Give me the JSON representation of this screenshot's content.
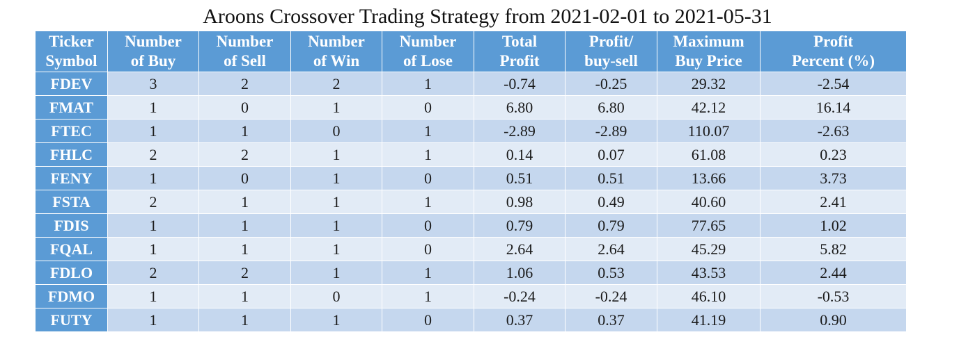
{
  "title": "Aroons Crossover Trading Strategy from 2021-02-01 to 2021-05-31",
  "colors": {
    "header_bg": "#5b9bd5",
    "row_odd": "#c5d7ee",
    "row_even": "#e2ebf6"
  },
  "columns": [
    {
      "line1": "Ticker",
      "line2": "Symbol"
    },
    {
      "line1": "Number",
      "line2": "of Buy"
    },
    {
      "line1": "Number",
      "line2": "of Sell"
    },
    {
      "line1": "Number",
      "line2": "of Win"
    },
    {
      "line1": "Number",
      "line2": "of Lose"
    },
    {
      "line1": "Total",
      "line2": "Profit"
    },
    {
      "line1": "Profit/",
      "line2": "buy-sell"
    },
    {
      "line1": "Maximum",
      "line2": "Buy Price"
    },
    {
      "line1": "Profit",
      "line2": "Percent (%)"
    }
  ],
  "rows": [
    [
      "FDEV",
      "3",
      "2",
      "2",
      "1",
      "-0.74",
      "-0.25",
      "29.32",
      "-2.54"
    ],
    [
      "FMAT",
      "1",
      "0",
      "1",
      "0",
      "6.80",
      "6.80",
      "42.12",
      "16.14"
    ],
    [
      "FTEC",
      "1",
      "1",
      "0",
      "1",
      "-2.89",
      "-2.89",
      "110.07",
      "-2.63"
    ],
    [
      "FHLC",
      "2",
      "2",
      "1",
      "1",
      "0.14",
      "0.07",
      "61.08",
      "0.23"
    ],
    [
      "FENY",
      "1",
      "0",
      "1",
      "0",
      "0.51",
      "0.51",
      "13.66",
      "3.73"
    ],
    [
      "FSTA",
      "2",
      "1",
      "1",
      "1",
      "0.98",
      "0.49",
      "40.60",
      "2.41"
    ],
    [
      "FDIS",
      "1",
      "1",
      "1",
      "0",
      "0.79",
      "0.79",
      "77.65",
      "1.02"
    ],
    [
      "FQAL",
      "1",
      "1",
      "1",
      "0",
      "2.64",
      "2.64",
      "45.29",
      "5.82"
    ],
    [
      "FDLO",
      "2",
      "2",
      "1",
      "1",
      "1.06",
      "0.53",
      "43.53",
      "2.44"
    ],
    [
      "FDMO",
      "1",
      "1",
      "0",
      "1",
      "-0.24",
      "-0.24",
      "46.10",
      "-0.53"
    ],
    [
      "FUTY",
      "1",
      "1",
      "1",
      "0",
      "0.37",
      "0.37",
      "41.19",
      "0.90"
    ]
  ]
}
